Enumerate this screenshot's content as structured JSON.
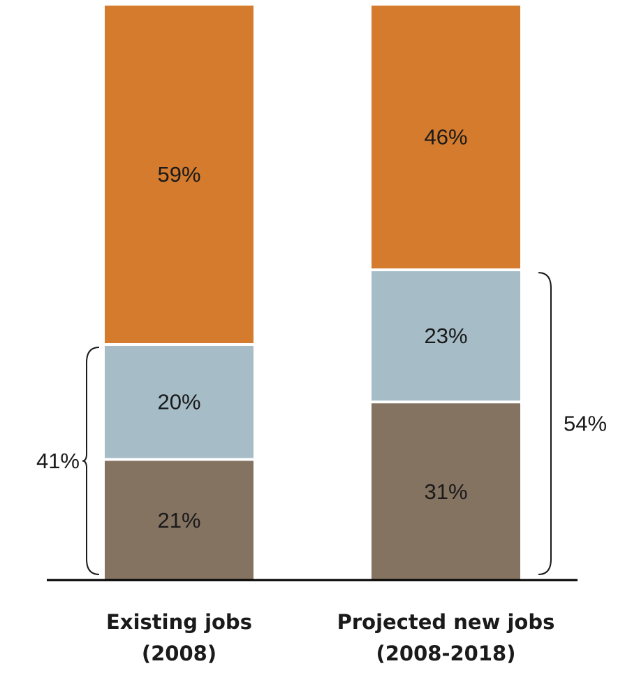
{
  "chart_data": {
    "type": "bar",
    "stacked": true,
    "categories": [
      [
        "Existing jobs",
        "(2008)"
      ],
      [
        "Projected new jobs",
        "(2008-2018)"
      ]
    ],
    "series": [
      {
        "values": [
          21,
          31
        ],
        "labels": [
          "21%",
          "31%"
        ],
        "color": "#857362"
      },
      {
        "values": [
          20,
          23
        ],
        "labels": [
          "20%",
          "23%"
        ],
        "color": "#a6bcc6"
      },
      {
        "values": [
          59,
          46
        ],
        "labels": [
          "59%",
          "46%"
        ],
        "color": "#d47b2d"
      }
    ],
    "annotations": [
      {
        "category_index": 0,
        "side": "left",
        "series_span": [
          0,
          1
        ],
        "value": 41,
        "label": "41%"
      },
      {
        "category_index": 1,
        "side": "right",
        "series_span": [
          0,
          1
        ],
        "value": 54,
        "label": "54%"
      }
    ],
    "ylim": [
      0,
      100
    ],
    "title": "",
    "xlabel": "",
    "ylabel": "",
    "grid": false,
    "legend": "none"
  }
}
